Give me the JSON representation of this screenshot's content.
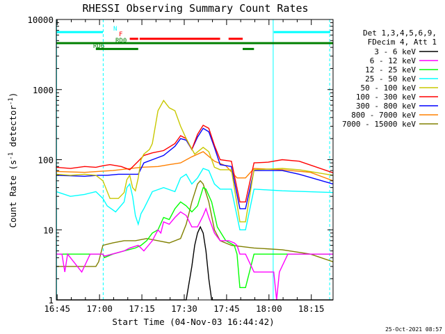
{
  "chart_data": {
    "type": "line",
    "title": "RHESSI Observing Summary Count Rates",
    "xlabel": "Start Time (04-Nov-03 16:44:42)",
    "ylabel_main": "Count Rate (s",
    "ylabel_sup1": "-1",
    "ylabel_mid": " detector",
    "ylabel_sup2": "-1",
    "ylabel_end": ")",
    "y_scale": "log",
    "ylim": [
      1,
      10000
    ],
    "xlim_minutes": [
      0,
      98
    ],
    "x_ticks": [
      {
        "minute": 0.3,
        "label": "16:45"
      },
      {
        "minute": 15.3,
        "label": "17:00"
      },
      {
        "minute": 30.3,
        "label": "17:15"
      },
      {
        "minute": 45.3,
        "label": "17:30"
      },
      {
        "minute": 60.3,
        "label": "17:45"
      },
      {
        "minute": 75.3,
        "label": "18:00"
      },
      {
        "minute": 90.3,
        "label": "18:15"
      }
    ],
    "y_ticks": [
      {
        "value": 1,
        "label": "1"
      },
      {
        "value": 10,
        "label": "10"
      },
      {
        "value": 100,
        "label": "100"
      },
      {
        "value": 1000,
        "label": "1000"
      },
      {
        "value": 10000,
        "label": "10000"
      }
    ],
    "legend_header": [
      "Det 1,3,4,5,6,9,",
      "FDecim 4, Att 1"
    ],
    "legend_placement": "right",
    "grid": false,
    "series": [
      {
        "name": "3 - 6 keV",
        "color": "#000000",
        "points": [
          [
            0,
            1.0
          ],
          [
            46,
            1.0
          ],
          [
            48,
            3
          ],
          [
            49,
            6
          ],
          [
            50,
            9
          ],
          [
            51,
            11
          ],
          [
            52,
            9
          ],
          [
            53,
            5
          ],
          [
            54,
            2
          ],
          [
            55,
            1.0
          ],
          [
            98,
            1.0
          ]
        ]
      },
      {
        "name": "6 - 12 keV",
        "color": "#ff00ff",
        "points": [
          [
            0,
            4.5
          ],
          [
            2,
            4.5
          ],
          [
            3,
            2.5
          ],
          [
            4,
            4.5
          ],
          [
            9,
            2.5
          ],
          [
            12,
            4.5
          ],
          [
            16.5,
            4.5
          ],
          [
            17,
            4.2
          ],
          [
            24,
            5
          ],
          [
            26,
            5.5
          ],
          [
            29,
            6
          ],
          [
            31,
            5
          ],
          [
            34,
            7
          ],
          [
            36,
            10
          ],
          [
            37,
            9
          ],
          [
            38,
            13
          ],
          [
            40,
            12
          ],
          [
            42,
            15
          ],
          [
            44,
            18
          ],
          [
            46,
            16
          ],
          [
            48,
            11
          ],
          [
            50,
            11
          ],
          [
            52,
            16
          ],
          [
            53,
            20
          ],
          [
            54,
            15
          ],
          [
            56,
            9
          ],
          [
            58,
            7
          ],
          [
            61,
            7
          ],
          [
            63,
            6.5
          ],
          [
            64,
            6
          ],
          [
            65,
            4.5
          ],
          [
            67,
            4.5
          ],
          [
            70,
            2.5
          ],
          [
            77,
            2.5
          ],
          [
            78,
            1
          ],
          [
            79,
            2.5
          ],
          [
            82,
            4.5
          ],
          [
            98,
            4.5
          ]
        ]
      },
      {
        "name": "12 - 25 keV",
        "color": "#00ff00",
        "points": [
          [
            0,
            4.5
          ],
          [
            16.5,
            4.5
          ],
          [
            17,
            4
          ],
          [
            20,
            4.5
          ],
          [
            24,
            5
          ],
          [
            28,
            5.5
          ],
          [
            30,
            6
          ],
          [
            32,
            7
          ],
          [
            34,
            9
          ],
          [
            36,
            10
          ],
          [
            38,
            15
          ],
          [
            40,
            14
          ],
          [
            42,
            20
          ],
          [
            44,
            25
          ],
          [
            46,
            22
          ],
          [
            48,
            18
          ],
          [
            50,
            22
          ],
          [
            52,
            40
          ],
          [
            53,
            38
          ],
          [
            55,
            25
          ],
          [
            57,
            11
          ],
          [
            60,
            7
          ],
          [
            63,
            6
          ],
          [
            64,
            4.5
          ],
          [
            65,
            1.5
          ],
          [
            67,
            1.5
          ],
          [
            70,
            4.5
          ],
          [
            98,
            4.5
          ]
        ]
      },
      {
        "name": "25 - 50 keV",
        "color": "#00ffff",
        "points": [
          [
            0,
            35
          ],
          [
            5,
            30
          ],
          [
            10,
            32
          ],
          [
            14,
            35
          ],
          [
            16.5,
            28
          ],
          [
            18,
            22
          ],
          [
            21,
            18
          ],
          [
            24,
            25
          ],
          [
            25,
            40
          ],
          [
            26,
            45
          ],
          [
            27,
            30
          ],
          [
            28,
            16
          ],
          [
            29,
            12
          ],
          [
            30,
            17
          ],
          [
            31,
            20
          ],
          [
            34,
            35
          ],
          [
            38,
            40
          ],
          [
            42,
            35
          ],
          [
            44,
            55
          ],
          [
            46,
            62
          ],
          [
            48,
            45
          ],
          [
            50,
            55
          ],
          [
            52,
            75
          ],
          [
            54,
            70
          ],
          [
            56,
            45
          ],
          [
            58,
            38
          ],
          [
            62,
            38
          ],
          [
            65,
            10
          ],
          [
            67,
            10
          ],
          [
            70,
            38
          ],
          [
            80,
            36
          ],
          [
            98,
            34
          ]
        ]
      },
      {
        "name": "50 - 100 keV",
        "color": "#c8c800",
        "points": [
          [
            0,
            62
          ],
          [
            5,
            60
          ],
          [
            10,
            62
          ],
          [
            14,
            60
          ],
          [
            16.5,
            50
          ],
          [
            19,
            28
          ],
          [
            22,
            28
          ],
          [
            24,
            34
          ],
          [
            25,
            52
          ],
          [
            26,
            60
          ],
          [
            27,
            40
          ],
          [
            28,
            36
          ],
          [
            29,
            55
          ],
          [
            30,
            100
          ],
          [
            31,
            120
          ],
          [
            33,
            140
          ],
          [
            34,
            170
          ],
          [
            36,
            500
          ],
          [
            38,
            700
          ],
          [
            40,
            550
          ],
          [
            42,
            500
          ],
          [
            44,
            300
          ],
          [
            46,
            200
          ],
          [
            49,
            120
          ],
          [
            52,
            150
          ],
          [
            54,
            130
          ],
          [
            56,
            78
          ],
          [
            58,
            72
          ],
          [
            62,
            72
          ],
          [
            65,
            13
          ],
          [
            67,
            13
          ],
          [
            70,
            72
          ],
          [
            80,
            75
          ],
          [
            86,
            72
          ],
          [
            98,
            60
          ]
        ]
      },
      {
        "name": "100 - 300 keV",
        "color": "#ff0000",
        "points": [
          [
            0,
            78
          ],
          [
            5,
            75
          ],
          [
            10,
            80
          ],
          [
            14,
            78
          ],
          [
            16.5,
            82
          ],
          [
            19,
            85
          ],
          [
            23,
            80
          ],
          [
            26,
            72
          ],
          [
            29,
            95
          ],
          [
            31,
            115
          ],
          [
            34,
            125
          ],
          [
            38,
            135
          ],
          [
            42,
            170
          ],
          [
            44,
            220
          ],
          [
            46,
            200
          ],
          [
            48,
            140
          ],
          [
            50,
            230
          ],
          [
            52,
            310
          ],
          [
            54,
            280
          ],
          [
            56,
            160
          ],
          [
            58,
            100
          ],
          [
            62,
            95
          ],
          [
            65,
            25
          ],
          [
            67,
            25
          ],
          [
            70,
            90
          ],
          [
            75,
            92
          ],
          [
            80,
            100
          ],
          [
            86,
            95
          ],
          [
            98,
            65
          ]
        ]
      },
      {
        "name": "300 - 800 keV",
        "color": "#0000ff",
        "points": [
          [
            0,
            60
          ],
          [
            10,
            58
          ],
          [
            15,
            60
          ],
          [
            18,
            60
          ],
          [
            22,
            62
          ],
          [
            29,
            62
          ],
          [
            31,
            90
          ],
          [
            34,
            100
          ],
          [
            38,
            115
          ],
          [
            42,
            155
          ],
          [
            44,
            200
          ],
          [
            46,
            190
          ],
          [
            48,
            140
          ],
          [
            50,
            210
          ],
          [
            52,
            280
          ],
          [
            54,
            250
          ],
          [
            56,
            150
          ],
          [
            58,
            85
          ],
          [
            62,
            80
          ],
          [
            65,
            20
          ],
          [
            67,
            20
          ],
          [
            70,
            70
          ],
          [
            80,
            70
          ],
          [
            86,
            62
          ],
          [
            98,
            45
          ]
        ]
      },
      {
        "name": "800 - 7000 keV",
        "color": "#ff8000",
        "points": [
          [
            0,
            68
          ],
          [
            10,
            66
          ],
          [
            20,
            70
          ],
          [
            30,
            78
          ],
          [
            36,
            80
          ],
          [
            40,
            85
          ],
          [
            44,
            90
          ],
          [
            48,
            110
          ],
          [
            52,
            130
          ],
          [
            56,
            95
          ],
          [
            60,
            82
          ],
          [
            64,
            55
          ],
          [
            67,
            55
          ],
          [
            70,
            75
          ],
          [
            80,
            72
          ],
          [
            90,
            66
          ],
          [
            98,
            50
          ]
        ]
      },
      {
        "name": "7000 - 15000 keV",
        "color": "#808000",
        "points": [
          [
            0,
            3
          ],
          [
            14,
            3
          ],
          [
            15,
            3.5
          ],
          [
            16.5,
            6
          ],
          [
            20,
            6.5
          ],
          [
            24,
            7
          ],
          [
            28,
            7
          ],
          [
            32,
            7.5
          ],
          [
            36,
            7
          ],
          [
            40,
            6.5
          ],
          [
            44,
            7.5
          ],
          [
            46,
            12
          ],
          [
            48,
            25
          ],
          [
            50,
            45
          ],
          [
            51,
            50
          ],
          [
            52,
            45
          ],
          [
            54,
            25
          ],
          [
            56,
            10
          ],
          [
            58,
            7
          ],
          [
            62,
            6
          ],
          [
            70,
            5.5
          ],
          [
            80,
            5.2
          ],
          [
            90,
            4.5
          ],
          [
            98,
            3.5
          ]
        ]
      }
    ],
    "annotations": {
      "N": "N",
      "F": "F",
      "RD0": "RD0",
      "RD6": "RD6"
    },
    "status_bars": [
      {
        "label": "N",
        "color": "#00ffff",
        "level": 6600,
        "segments": [
          [
            0,
            16.5
          ],
          [
            77,
            97
          ]
        ]
      },
      {
        "label": "F",
        "color": "#ff0000",
        "level": 5300,
        "segments": [
          [
            26,
            29
          ],
          [
            29.5,
            58
          ],
          [
            61,
            66
          ]
        ]
      },
      {
        "label": "RD0",
        "color": "#008000",
        "level": 4600,
        "segments": [
          [
            0,
            98
          ]
        ]
      },
      {
        "label": "RD6",
        "color": "#008000",
        "level": 3800,
        "segments": [
          [
            14,
            29
          ],
          [
            66,
            70
          ]
        ]
      }
    ],
    "vertical_markers": [
      {
        "minute": 0.1,
        "style": "solid",
        "color": "#00ffff"
      },
      {
        "minute": 16.6,
        "style": "dashed",
        "color": "#00ffff"
      },
      {
        "minute": 76.8,
        "style": "solid",
        "color": "#00ffff"
      },
      {
        "minute": 96.8,
        "style": "dashed",
        "color": "#00ffff"
      }
    ]
  },
  "footer_stamp": "25-Oct-2021 08:57"
}
